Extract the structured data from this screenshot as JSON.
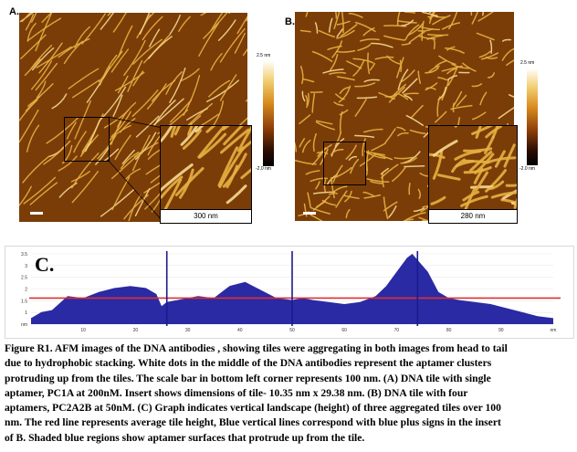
{
  "panels": {
    "a": {
      "label": "A.",
      "colorbar_top": "2.5 nm",
      "colorbar_bottom": "-2.0 nm",
      "inset_scale": "300 nm"
    },
    "b": {
      "label": "B.",
      "colorbar_top": "2.5 nm",
      "colorbar_bottom": "-2.0 nm",
      "inset_scale": "280 nm"
    },
    "c": {
      "label": "C."
    }
  },
  "colors": {
    "afm_bg": "#7a3d08",
    "afm_fiber": "#e8b040",
    "area": "#1f1fa0",
    "avg_line": "#e03030",
    "vline": "#1a1a8c"
  },
  "chart_data": {
    "type": "area",
    "x": [
      0,
      2,
      4,
      7,
      10,
      13,
      16,
      19,
      22,
      24,
      25,
      26,
      28,
      30,
      32,
      35,
      38,
      41,
      44,
      47,
      50,
      52,
      54,
      57,
      60,
      63,
      66,
      68,
      70,
      72,
      73,
      74,
      76,
      78,
      80,
      82,
      85,
      88,
      91,
      94,
      97,
      100
    ],
    "y": [
      0.3,
      0.6,
      0.7,
      1.4,
      1.3,
      1.6,
      1.8,
      1.9,
      1.8,
      1.5,
      0.9,
      1.1,
      1.2,
      1.3,
      1.4,
      1.3,
      1.9,
      2.1,
      1.7,
      1.3,
      1.2,
      1.3,
      1.2,
      1.1,
      1.0,
      1.1,
      1.4,
      1.9,
      2.6,
      3.3,
      3.5,
      3.2,
      2.6,
      1.6,
      1.3,
      1.2,
      1.1,
      1.0,
      0.8,
      0.6,
      0.4,
      0.3
    ],
    "xlim": [
      0,
      100
    ],
    "ylim": [
      0,
      3.5
    ],
    "x_ticks": [
      "10",
      "20",
      "30",
      "40",
      "50",
      "60",
      "70",
      "80",
      "90",
      "nm"
    ],
    "y_ticks": [
      "3.5",
      "3",
      "2.5",
      "2",
      "1.5",
      "1",
      "nm"
    ],
    "average_line": 1.3,
    "vertical_lines": [
      26,
      50,
      74
    ]
  },
  "caption_lines": [
    "Figure R1. AFM images of the DNA antibodies , showing tiles were aggregating in both images from head to tail",
    "due to hydrophobic stacking. White dots in the middle of the DNA antibodies represent the aptamer clusters",
    "protruding up from the tiles. The scale bar in bottom left corner represents 100 nm. (A) DNA tile with single",
    "aptamer, PC1A at 200nM. Insert shows dimensions of tile- 10.35 nm x 29.38 nm. (B) DNA tile with four",
    "aptamers, PC2A2B at 50nM. (C) Graph indicates vertical landscape (height) of three aggregated tiles over 100",
    "nm. The red line represents average tile height, Blue vertical lines correspond with blue plus signs in the insert",
    "of B. Shaded blue regions show aptamer surfaces that protrude up from the tile."
  ]
}
